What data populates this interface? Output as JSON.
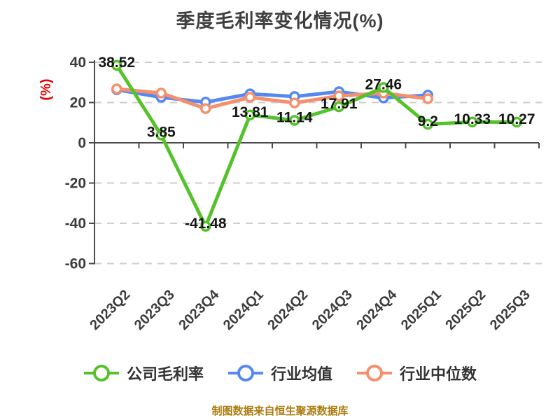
{
  "title": "季度毛利率变化情况(%)",
  "y_axis_label": "(%)",
  "footer": "制图数据来自恒生聚源数据库",
  "colors": {
    "company": "#55c22b",
    "industry_avg": "#5689f0",
    "industry_median": "#f5906d",
    "grid": "#cecece",
    "axis": "#4a4a4a",
    "tick_text": "#3c3c3c",
    "data_label": "#161616",
    "y_axis_label_red": "#ea0000"
  },
  "chart_data": {
    "type": "line",
    "categories": [
      "2023Q2",
      "2023Q3",
      "2023Q4",
      "2024Q1",
      "2024Q2",
      "2024Q3",
      "2024Q4",
      "2025Q1",
      "2025Q2",
      "2025Q3"
    ],
    "series": [
      {
        "name": "公司毛利率",
        "color": "#55c22b",
        "values": [
          38.52,
          3.85,
          -41.48,
          13.81,
          11.14,
          17.91,
          27.46,
          9.2,
          10.33,
          10.27
        ],
        "labels": [
          "38.52",
          "3.85",
          "-41.48",
          "13.81",
          "11.14",
          "17.91",
          "27.46",
          "9.2",
          "10.33",
          "10.27"
        ]
      },
      {
        "name": "行业均值",
        "color": "#5689f0",
        "values": [
          26.4,
          22.6,
          20.2,
          24.3,
          23.0,
          25.4,
          22.3,
          23.7,
          null,
          null
        ],
        "labels": null
      },
      {
        "name": "行业中位数",
        "color": "#f5906d",
        "values": [
          26.8,
          24.7,
          17.0,
          22.6,
          19.8,
          23.3,
          24.7,
          21.9,
          null,
          null
        ],
        "labels": null
      }
    ],
    "ylim": [
      -60,
      40
    ],
    "yticks": [
      40,
      20,
      0,
      -20,
      -40,
      -60
    ],
    "grid": "dashed horizontal",
    "legend_position": "bottom"
  }
}
